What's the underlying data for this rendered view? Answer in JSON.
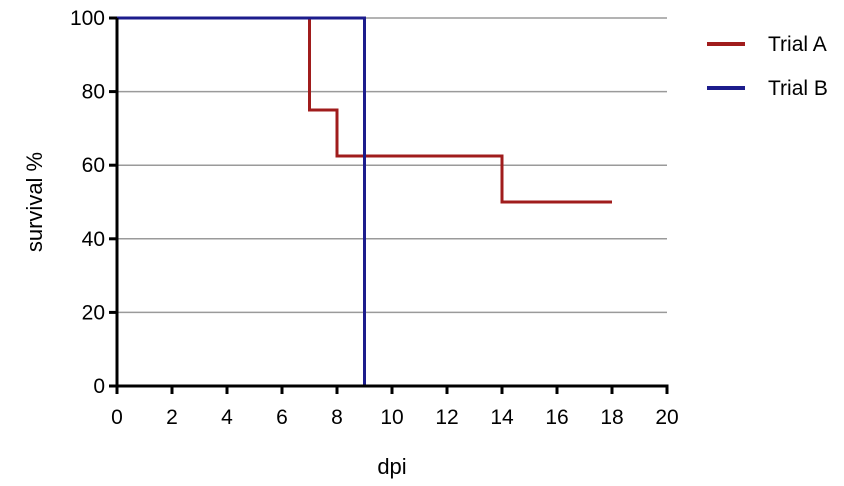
{
  "chart_data": {
    "type": "line",
    "step": true,
    "xlabel": "dpi",
    "ylabel": "survival %",
    "xlim": [
      0,
      20
    ],
    "ylim": [
      0,
      100
    ],
    "xticks": [
      "0",
      "2",
      "4",
      "6",
      "8",
      "10",
      "12",
      "14",
      "16",
      "18",
      "20"
    ],
    "yticks": [
      "0",
      "20",
      "40",
      "60",
      "80",
      "100"
    ],
    "grid": "horizontal",
    "legend_position": "top-right",
    "series": [
      {
        "name": "Trial A",
        "color": "#a01c1c",
        "x": [
          0,
          7,
          7,
          8,
          8,
          14,
          14,
          18
        ],
        "y": [
          100,
          100,
          75,
          75,
          62.5,
          62.5,
          50,
          50
        ]
      },
      {
        "name": "Trial B",
        "color": "#1c1c8c",
        "x": [
          0,
          9,
          9
        ],
        "y": [
          100,
          100,
          0
        ]
      }
    ]
  }
}
